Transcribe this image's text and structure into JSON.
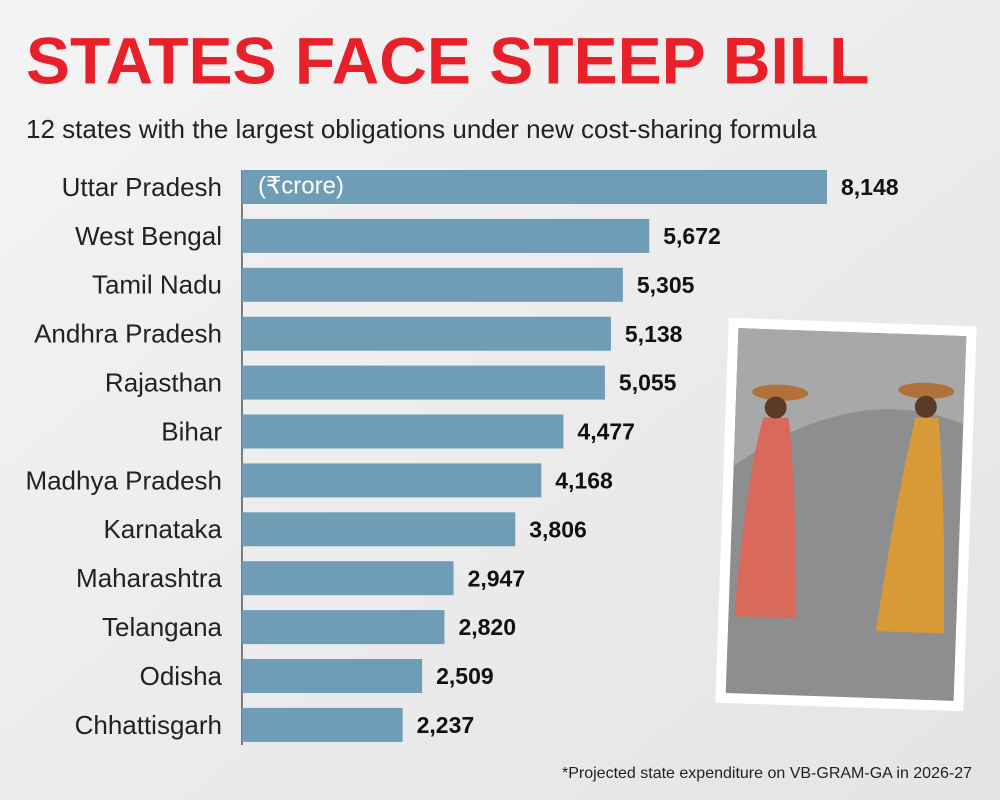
{
  "chart_data": {
    "type": "hbar",
    "title": "STATES FACE STEEP BILL",
    "subtitle": "12 states with the largest obligations under new cost-sharing formula",
    "unit": "(₹crore)",
    "footnote": "*Projected state expenditure on  VB-GRAM-GA in 2026-27",
    "categories": [
      "Uttar Pradesh",
      "West Bengal",
      "Tamil Nadu",
      "Andhra Pradesh",
      "Rajasthan",
      "Bihar",
      "Madhya Pradesh",
      "Karnataka",
      "Maharashtra",
      "Telangana",
      "Odisha",
      "Chhattisgarh"
    ],
    "values": [
      8148,
      5672,
      5305,
      5138,
      5055,
      4477,
      4168,
      3806,
      2947,
      2820,
      2509,
      2237
    ],
    "value_labels": [
      "8,148",
      "5,672",
      "5,305",
      "5,138",
      "5,055",
      "4,477",
      "4,168",
      "3,806",
      "2,947",
      "2,820",
      "2,509",
      "2,237"
    ],
    "color": "#6f9db5",
    "title_color": "#e8202a"
  }
}
